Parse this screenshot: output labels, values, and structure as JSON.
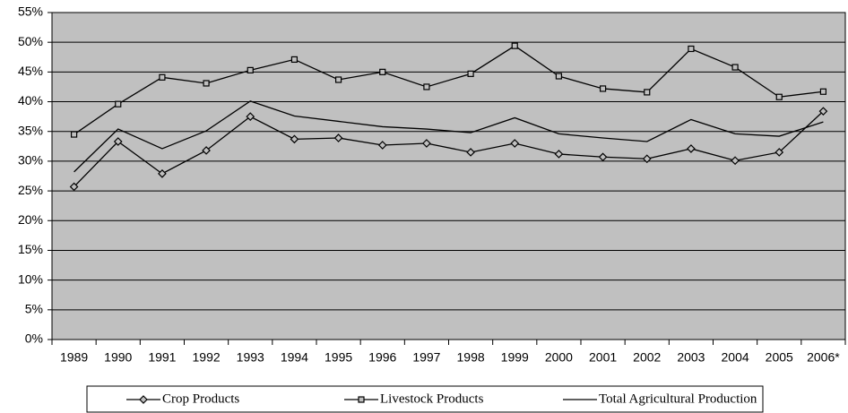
{
  "chart_data": {
    "type": "line",
    "categories": [
      "1989",
      "1990",
      "1991",
      "1992",
      "1993",
      "1994",
      "1995",
      "1996",
      "1997",
      "1998",
      "1999",
      "2000",
      "2001",
      "2002",
      "2003",
      "2004",
      "2005",
      "2006*"
    ],
    "series": [
      {
        "name": "Crop Products",
        "color": "#000000",
        "marker": "diamond",
        "values": [
          25.7,
          33.3,
          27.9,
          31.8,
          37.5,
          33.7,
          33.9,
          32.7,
          33.0,
          31.5,
          33.0,
          31.2,
          30.7,
          30.4,
          32.1,
          30.1,
          31.5,
          38.4
        ]
      },
      {
        "name": "Livestock Products",
        "color": "#000000",
        "marker": "square",
        "values": [
          34.5,
          39.6,
          44.1,
          43.1,
          45.3,
          47.1,
          43.7,
          45.0,
          42.5,
          44.7,
          49.4,
          44.3,
          42.2,
          41.6,
          48.9,
          45.8,
          40.8,
          41.7
        ]
      },
      {
        "name": "Total Agricultural Production",
        "color": "#000000",
        "marker": "none",
        "values": [
          28.2,
          35.4,
          32.1,
          35.1,
          40.1,
          37.6,
          36.7,
          35.8,
          35.4,
          34.8,
          37.3,
          34.6,
          33.9,
          33.3,
          37.0,
          34.6,
          34.2,
          36.6
        ]
      }
    ],
    "ylim": [
      0,
      55
    ],
    "yticks": [
      {
        "value": 0,
        "label": "0%"
      },
      {
        "value": 5,
        "label": "5%"
      },
      {
        "value": 10,
        "label": "10%"
      },
      {
        "value": 15,
        "label": "15%"
      },
      {
        "value": 20,
        "label": "20%"
      },
      {
        "value": 25,
        "label": "25%"
      },
      {
        "value": 30,
        "label": "30%"
      },
      {
        "value": 35,
        "label": "35%"
      },
      {
        "value": 40,
        "label": "40%"
      },
      {
        "value": 45,
        "label": "45%"
      },
      {
        "value": 50,
        "label": "50%"
      },
      {
        "value": 55,
        "label": "55%"
      }
    ],
    "grid": true,
    "plot_background": "#c0c0c0",
    "legend": "bottom"
  }
}
